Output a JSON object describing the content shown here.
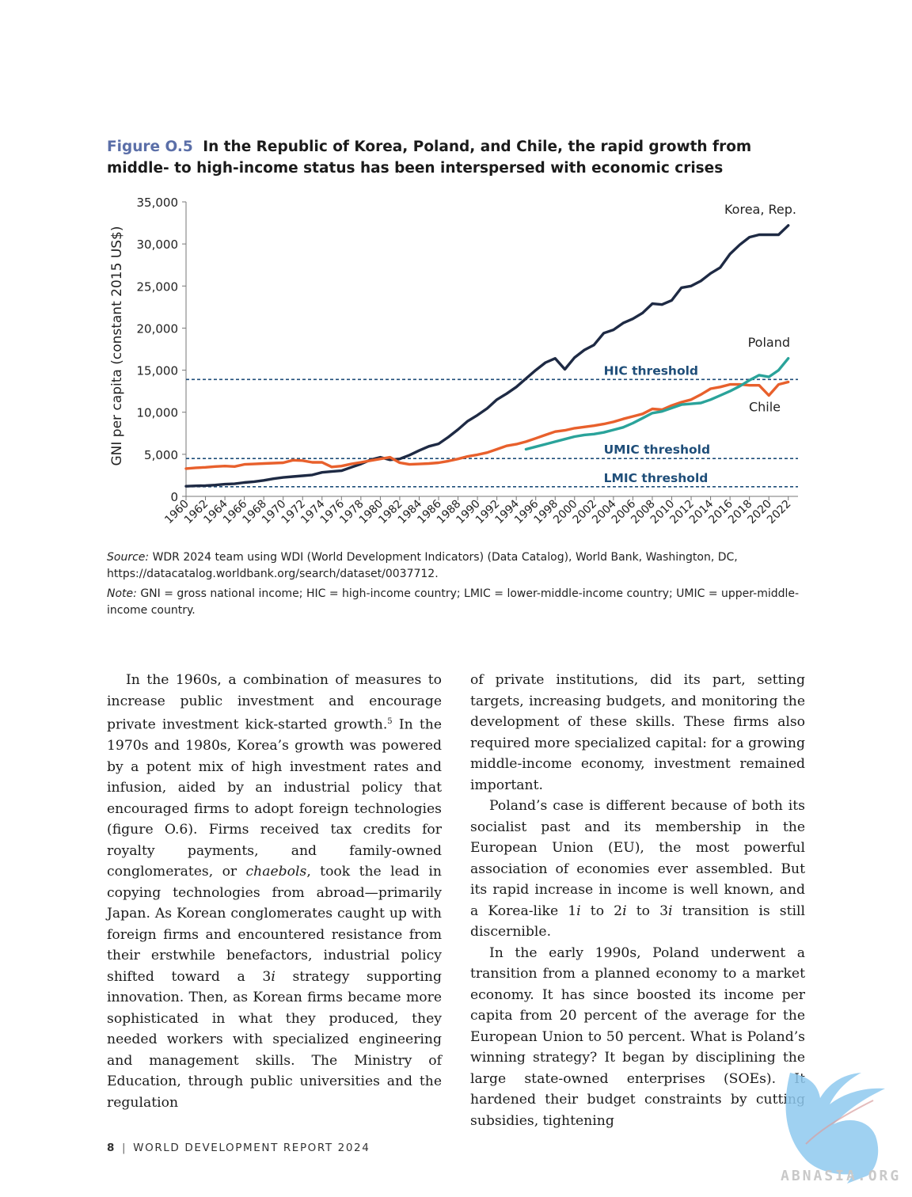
{
  "figure": {
    "label": "Figure O.5",
    "title": "In the Republic of Korea, Poland, and Chile, the rapid growth from middle- to high-income status has been interspersed with economic crises"
  },
  "chart_data": {
    "type": "line",
    "ylabel": "GNI per capita (constant 2015 US$)",
    "xlabel": "",
    "ylim": [
      0,
      35000
    ],
    "yticks": [
      0,
      5000,
      10000,
      15000,
      20000,
      25000,
      30000,
      35000
    ],
    "ytick_labels": [
      "0",
      "5,000",
      "10,000",
      "15,000",
      "20,000",
      "25,000",
      "30,000",
      "35,000"
    ],
    "xlim": [
      1960,
      2023
    ],
    "xticks": [
      1960,
      1962,
      1964,
      1966,
      1968,
      1970,
      1972,
      1974,
      1976,
      1978,
      1980,
      1982,
      1984,
      1986,
      1988,
      1990,
      1992,
      1994,
      1996,
      1998,
      2000,
      2002,
      2004,
      2006,
      2008,
      2010,
      2012,
      2014,
      2016,
      2018,
      2020,
      2022
    ],
    "series": [
      {
        "name": "Korea, Rep.",
        "color": "#1e2a44",
        "x": [
          1960,
          1961,
          1962,
          1963,
          1964,
          1965,
          1966,
          1967,
          1968,
          1969,
          1970,
          1971,
          1972,
          1973,
          1974,
          1975,
          1976,
          1977,
          1978,
          1979,
          1980,
          1981,
          1982,
          1983,
          1984,
          1985,
          1986,
          1987,
          1988,
          1989,
          1990,
          1991,
          1992,
          1993,
          1994,
          1995,
          1996,
          1997,
          1998,
          1999,
          2000,
          2001,
          2002,
          2003,
          2004,
          2005,
          2006,
          2007,
          2008,
          2009,
          2010,
          2011,
          2012,
          2013,
          2014,
          2015,
          2016,
          2017,
          2018,
          2019,
          2020,
          2021,
          2022
        ],
        "values": [
          1200,
          1250,
          1280,
          1350,
          1450,
          1500,
          1650,
          1750,
          1900,
          2100,
          2250,
          2350,
          2450,
          2550,
          2850,
          2950,
          3050,
          3450,
          3850,
          4350,
          4650,
          4350,
          4450,
          4900,
          5450,
          5950,
          6250,
          7050,
          7950,
          8950,
          9650,
          10450,
          11500,
          12200,
          13000,
          14000,
          15000,
          15900,
          16400,
          15100,
          16500,
          17400,
          18000,
          19400,
          19800,
          20600,
          21100,
          21800,
          22900,
          22800,
          23300,
          24800,
          25000,
          25600,
          26500,
          27200,
          28800,
          29900,
          30800,
          31100,
          31100,
          31100,
          32200
        ]
      },
      {
        "name": "Chile",
        "color": "#e8602c",
        "x": [
          1960,
          1961,
          1962,
          1963,
          1964,
          1965,
          1966,
          1967,
          1968,
          1969,
          1970,
          1971,
          1972,
          1973,
          1974,
          1975,
          1976,
          1977,
          1978,
          1979,
          1980,
          1981,
          1982,
          1983,
          1984,
          1985,
          1986,
          1987,
          1988,
          1989,
          1990,
          1991,
          1992,
          1993,
          1994,
          1995,
          1996,
          1997,
          1998,
          1999,
          2000,
          2001,
          2002,
          2003,
          2004,
          2005,
          2006,
          2007,
          2008,
          2009,
          2010,
          2011,
          2012,
          2013,
          2014,
          2015,
          2016,
          2017,
          2018,
          2019,
          2020,
          2021,
          2022
        ],
        "values": [
          3300,
          3400,
          3450,
          3550,
          3600,
          3550,
          3800,
          3850,
          3900,
          3950,
          4000,
          4300,
          4250,
          4050,
          4050,
          3500,
          3600,
          3850,
          4050,
          4250,
          4450,
          4650,
          4000,
          3800,
          3850,
          3900,
          4000,
          4200,
          4450,
          4750,
          4950,
          5200,
          5600,
          6000,
          6200,
          6500,
          6900,
          7300,
          7700,
          7850,
          8100,
          8250,
          8400,
          8600,
          8850,
          9200,
          9500,
          9800,
          10400,
          10300,
          10800,
          11200,
          11500,
          12100,
          12800,
          13000,
          13300,
          13300,
          13200,
          13200,
          12000,
          13300,
          13600
        ]
      },
      {
        "name": "Poland",
        "color": "#2aa39a",
        "x": [
          1995,
          1996,
          1997,
          1998,
          1999,
          2000,
          2001,
          2002,
          2003,
          2004,
          2005,
          2006,
          2007,
          2008,
          2009,
          2010,
          2011,
          2012,
          2013,
          2014,
          2015,
          2016,
          2017,
          2018,
          2019,
          2020,
          2021,
          2022
        ],
        "values": [
          5600,
          5900,
          6200,
          6500,
          6800,
          7100,
          7300,
          7400,
          7600,
          7900,
          8200,
          8700,
          9300,
          9900,
          10100,
          10500,
          10900,
          11000,
          11100,
          11500,
          12000,
          12500,
          13100,
          13800,
          14400,
          14200,
          15000,
          16400
        ]
      }
    ],
    "thresholds": [
      {
        "name": "HIC threshold",
        "value": 13900,
        "color": "#1f4e79"
      },
      {
        "name": "UMIC threshold",
        "value": 4500,
        "color": "#1f4e79"
      },
      {
        "name": "LMIC threshold",
        "value": 1150,
        "color": "#1f4e79"
      }
    ],
    "legend": "inline labels"
  },
  "source": {
    "label": "Source:",
    "text": "WDR 2024 team using WDI (World Development Indicators) (Data Catalog), World Bank, Washington, DC, https://datacatalog.worldbank.org/search/dataset/0037712."
  },
  "note": {
    "label": "Note:",
    "text": "GNI = gross national income; HIC = high-income country; LMIC = lower-middle-income country; UMIC = upper-middle-income country."
  },
  "body": {
    "left": [
      {
        "a": "In the 1960s, a combination of measures to increase public investment and encourage private investment kick-started growth.",
        "sup": "5",
        "b": " In the 1970s and 1980s, Korea’s growth was powered by a potent mix of high investment rates and infusion, aided by an industrial policy that encouraged firms to adopt foreign technologies (figure O.6). Firms received tax credits for royalty payments, and family-owned conglomerates, or ",
        "em": "chaebols",
        "c": ", took the lead in copying technologies from abroad—primarily Japan. As Korean conglomerates caught up with foreign firms and encountered resistance from their erstwhile benefactors, industrial policy shifted toward a 3",
        "em2": "i",
        "d": " strategy supporting innovation. Then, as Korean firms became more sophisticated in what they produced, they needed workers with specialized engineering and management skills. The Ministry of Education, through public universities and the regulation"
      }
    ],
    "right_p1": "of private institutions, did its part, setting targets, increasing budgets, and monitoring the development of these skills. These firms also required more specialized capital: for a growing middle-income economy, investment remained important.",
    "right_p2": {
      "a": "Poland’s case is different because of both its socialist past and its membership in the European Union (EU), the most powerful association of economies ever assembled. But its rapid increase in income is well known, and a Korea-like 1",
      "i1": "i",
      "b": " to 2",
      "i2": "i",
      "c": " to 3",
      "i3": "i",
      "d": " transition is still discernible."
    },
    "right_p3": "In the early 1990s, Poland underwent a transition from a planned economy to a market economy. It has since boosted its income per capita from 20 percent of the average for the European Union to 50 percent. What is Poland’s winning strategy? It began by disciplining the large state-owned enterprises (SOEs). It hardened their budget constraints by cutting subsidies, tightening"
  },
  "footer": {
    "page": "8",
    "separator": "|",
    "title": "WORLD DEVELOPMENT REPORT 2024"
  },
  "watermark": {
    "text": "ABNASIA.ORG"
  }
}
